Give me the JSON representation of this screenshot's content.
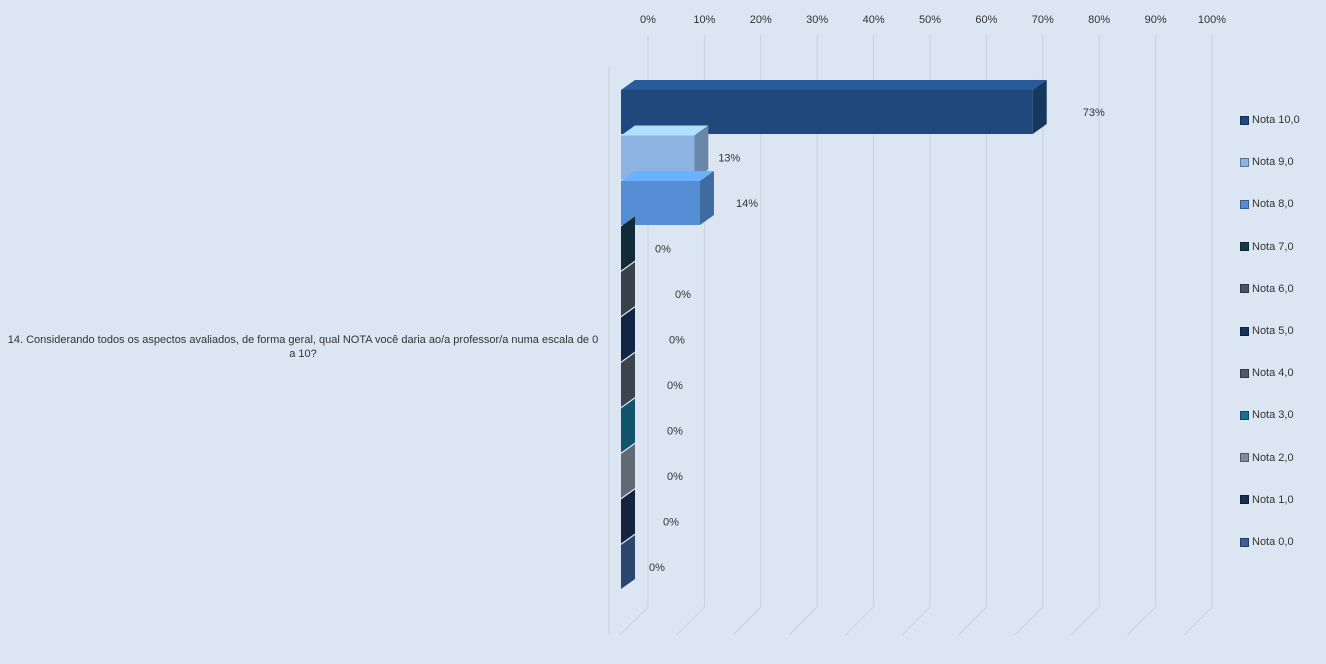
{
  "chart_data": {
    "type": "bar",
    "orientation": "horizontal",
    "category": "14. Considerando todos os aspectos avaliados, de forma geral, qual NOTA você daria ao/a professor/a numa escala de 0 a 10?",
    "x_ticks": [
      "0%",
      "10%",
      "20%",
      "30%",
      "40%",
      "50%",
      "60%",
      "70%",
      "80%",
      "90%",
      "100%"
    ],
    "xlim": [
      0,
      100
    ],
    "grid": true,
    "legend_position": "right",
    "series": [
      {
        "name": "Nota 10,0",
        "value": 73,
        "label": "73%",
        "color": "#1f497d"
      },
      {
        "name": "Nota 9,0",
        "value": 13,
        "label": "13%",
        "color": "#8db3e2"
      },
      {
        "name": "Nota 8,0",
        "value": 14,
        "label": "14%",
        "color": "#558ed5"
      },
      {
        "name": "Nota 7,0",
        "value": 0,
        "label": "0%",
        "color": "#17394a"
      },
      {
        "name": "Nota 6,0",
        "value": 0,
        "label": "0%",
        "color": "#4a5561"
      },
      {
        "name": "Nota 5,0",
        "value": 0,
        "label": "0%",
        "color": "#17325a"
      },
      {
        "name": "Nota 4,0",
        "value": 0,
        "label": "0%",
        "color": "#4f5966"
      },
      {
        "name": "Nota 3,0",
        "value": 0,
        "label": "0%",
        "color": "#16708f"
      },
      {
        "name": "Nota 2,0",
        "value": 0,
        "label": "0%",
        "color": "#7e8d9c"
      },
      {
        "name": "Nota 1,0",
        "value": 0,
        "label": "0%",
        "color": "#1a2e52"
      },
      {
        "name": "Nota 0,0",
        "value": 0,
        "label": "0%",
        "color": "#3a5f94"
      }
    ]
  }
}
